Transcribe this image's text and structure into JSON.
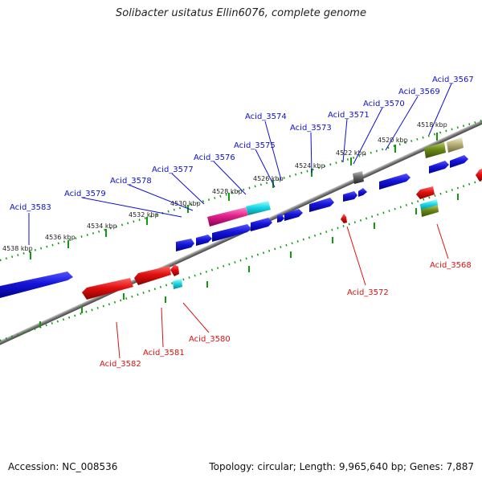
{
  "title": "Solibacter usitatus Ellin6076, complete genome",
  "footer": {
    "accession": "Accession: NC_008536",
    "info": "Topology: circular; Length: 9,965,640 bp; Genes: 7,887"
  },
  "colors": {
    "forward": "#1010cc",
    "reverse": "#dd1111",
    "tick": "#119911",
    "backbone": "#888888"
  },
  "scale_ticks": [
    "4538 kbp",
    "4536 kbp",
    "4534 kbp",
    "4532 kbp",
    "4530 kbp",
    "4528 kbp",
    "4526 kbp",
    "4524 kbp",
    "4522 kbp",
    "4520 kbp",
    "4518 kbp"
  ],
  "gene_labels_top": [
    "Acid_3583",
    "Acid_3579",
    "Acid_3578",
    "Acid_3577",
    "Acid_3576",
    "Acid_3575",
    "Acid_3574",
    "Acid_3573",
    "Acid_3571",
    "Acid_3570",
    "Acid_3569",
    "Acid_3567"
  ],
  "gene_labels_bottom": [
    "Acid_3582",
    "Acid_3581",
    "Acid_3580",
    "Acid_3572",
    "Acid_3568"
  ]
}
